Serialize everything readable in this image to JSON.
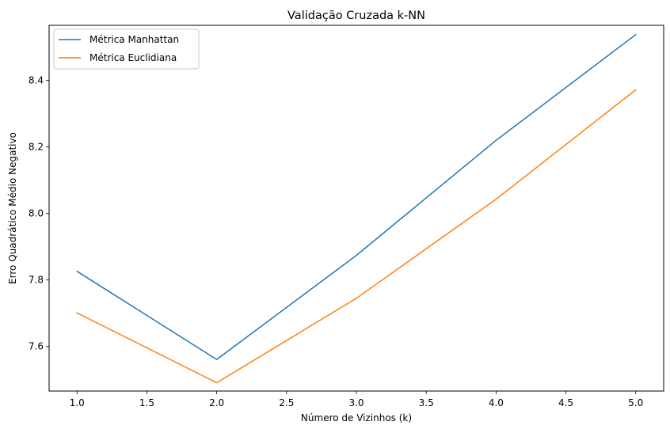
{
  "chart_data": {
    "type": "line",
    "title": "Validação Cruzada k-NN",
    "xlabel": "Número de Vizinhos (k)",
    "ylabel": "Erro Quadrático Médio Negativo",
    "x": [
      1,
      2,
      3,
      4,
      5
    ],
    "xlim": [
      0.8,
      5.2
    ],
    "ylim": [
      7.466,
      8.566
    ],
    "xticks": [
      "1.0",
      "1.5",
      "2.0",
      "2.5",
      "3.0",
      "3.5",
      "4.0",
      "4.5",
      "5.0"
    ],
    "yticks": [
      "7.6",
      "7.8",
      "8.0",
      "8.2",
      "8.4"
    ],
    "grid": false,
    "legend_position": "upper-left",
    "series": [
      {
        "name": "Métrica Manhattan",
        "color": "#1f77b4",
        "values": [
          7.826,
          7.561,
          7.874,
          8.22,
          8.538
        ]
      },
      {
        "name": "Métrica Euclidiana",
        "color": "#ff7f0e",
        "values": [
          7.701,
          7.491,
          7.745,
          8.043,
          8.372
        ]
      }
    ]
  }
}
